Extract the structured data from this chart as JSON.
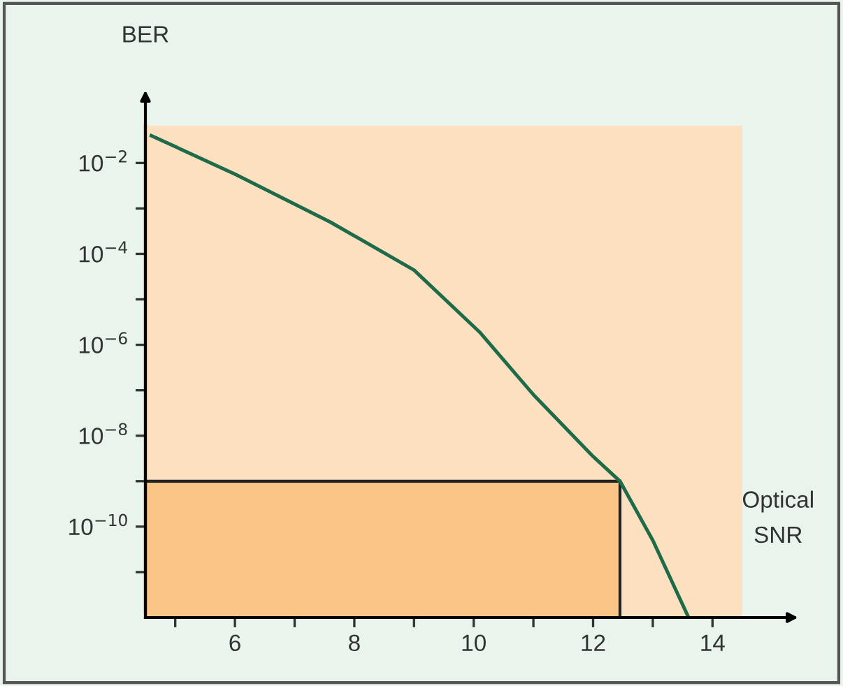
{
  "chart_data": {
    "type": "line",
    "xlabel": "Optical\nSNR",
    "ylabel": "BER",
    "log": "y",
    "xlim": [
      4.5,
      14.5
    ],
    "ylim": [
      1e-12,
      0.066
    ],
    "xticks": [
      {
        "value": 5,
        "label": null
      },
      6,
      {
        "value": 7,
        "label": null
      },
      8,
      {
        "value": 9,
        "label": null
      },
      10,
      {
        "value": 11,
        "label": null
      },
      12,
      {
        "value": 13,
        "label": null
      },
      14
    ],
    "yticks": [
      {
        "value": 1e-11,
        "label": null
      },
      {
        "value": 1e-10,
        "label": "10$^{−10}$"
      },
      {
        "value": 1e-09,
        "label": null
      },
      {
        "value": 1e-08,
        "label": "10$^{−8}$"
      },
      {
        "value": 1e-07,
        "label": null
      },
      {
        "value": 1e-06,
        "label": "10$^{−6}$"
      },
      {
        "value": 1e-05,
        "label": null
      },
      {
        "value": 0.0001,
        "label": "10$^{−4}$"
      },
      {
        "value": 0.001,
        "label": null
      },
      {
        "value": 0.01,
        "label": "10$^{−2}$"
      }
    ],
    "series": [
      {
        "type": "area",
        "color": "#fbc587",
        "x": [
          4.5,
          12.45
        ],
        "values": [
          1e-09,
          1e-09
        ]
      },
      {
        "color": "#1e6b4a",
        "x": [
          4.6,
          6,
          7.6,
          9,
          10.1,
          11,
          12,
          12.45,
          13,
          13.6
        ],
        "values": [
          0.04,
          0.0057,
          0.0005,
          4.4e-05,
          1.9e-06,
          8e-08,
          3.5e-09,
          1e-09,
          5e-11,
          1e-12
        ]
      }
    ],
    "grid": false,
    "legend": false
  }
}
